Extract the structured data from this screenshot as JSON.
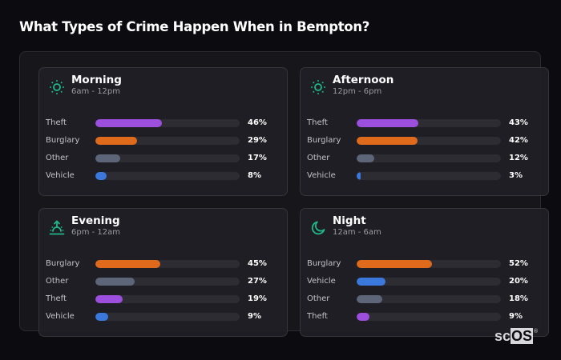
{
  "title": "What Types of Crime Happen When in Bempton?",
  "colors": {
    "Theft": "#9b4fdc",
    "Burglary": "#e06a1c",
    "Other": "#5d6678",
    "Vehicle": "#3a78dc",
    "icon": "#1fb88a"
  },
  "cards": [
    {
      "name": "Morning",
      "range": "6am - 12pm",
      "icon": "sun-icon",
      "rows": [
        {
          "label": "Theft",
          "value": 46,
          "pct": "46%"
        },
        {
          "label": "Burglary",
          "value": 29,
          "pct": "29%"
        },
        {
          "label": "Other",
          "value": 17,
          "pct": "17%"
        },
        {
          "label": "Vehicle",
          "value": 8,
          "pct": "8%"
        }
      ]
    },
    {
      "name": "Afternoon",
      "range": "12pm - 6pm",
      "icon": "sun-icon",
      "rows": [
        {
          "label": "Theft",
          "value": 43,
          "pct": "43%"
        },
        {
          "label": "Burglary",
          "value": 42,
          "pct": "42%"
        },
        {
          "label": "Other",
          "value": 12,
          "pct": "12%"
        },
        {
          "label": "Vehicle",
          "value": 3,
          "pct": "3%"
        }
      ]
    },
    {
      "name": "Evening",
      "range": "6pm - 12am",
      "icon": "sunset-icon",
      "rows": [
        {
          "label": "Burglary",
          "value": 45,
          "pct": "45%"
        },
        {
          "label": "Other",
          "value": 27,
          "pct": "27%"
        },
        {
          "label": "Theft",
          "value": 19,
          "pct": "19%"
        },
        {
          "label": "Vehicle",
          "value": 9,
          "pct": "9%"
        }
      ]
    },
    {
      "name": "Night",
      "range": "12am - 6am",
      "icon": "moon-icon",
      "rows": [
        {
          "label": "Burglary",
          "value": 52,
          "pct": "52%"
        },
        {
          "label": "Vehicle",
          "value": 20,
          "pct": "20%"
        },
        {
          "label": "Other",
          "value": 18,
          "pct": "18%"
        },
        {
          "label": "Theft",
          "value": 9,
          "pct": "9%"
        }
      ]
    }
  ],
  "logo": {
    "sc": "sc",
    "os": "OS",
    "reg": "®"
  },
  "chart_data": {
    "type": "bar",
    "title": "What Types of Crime Happen When in Bempton?",
    "orientation": "horizontal",
    "xlim": [
      0,
      100
    ],
    "unit": "%",
    "panels": [
      {
        "title": "Morning",
        "subtitle": "6am - 12pm",
        "categories": [
          "Theft",
          "Burglary",
          "Other",
          "Vehicle"
        ],
        "values": [
          46,
          29,
          17,
          8
        ]
      },
      {
        "title": "Afternoon",
        "subtitle": "12pm - 6pm",
        "categories": [
          "Theft",
          "Burglary",
          "Other",
          "Vehicle"
        ],
        "values": [
          43,
          42,
          12,
          3
        ]
      },
      {
        "title": "Evening",
        "subtitle": "6pm - 12am",
        "categories": [
          "Burglary",
          "Other",
          "Theft",
          "Vehicle"
        ],
        "values": [
          45,
          27,
          19,
          9
        ]
      },
      {
        "title": "Night",
        "subtitle": "12am - 6am",
        "categories": [
          "Burglary",
          "Vehicle",
          "Other",
          "Theft"
        ],
        "values": [
          52,
          20,
          18,
          9
        ]
      }
    ],
    "series_colors": {
      "Theft": "#9b4fdc",
      "Burglary": "#e06a1c",
      "Other": "#5d6678",
      "Vehicle": "#3a78dc"
    }
  }
}
